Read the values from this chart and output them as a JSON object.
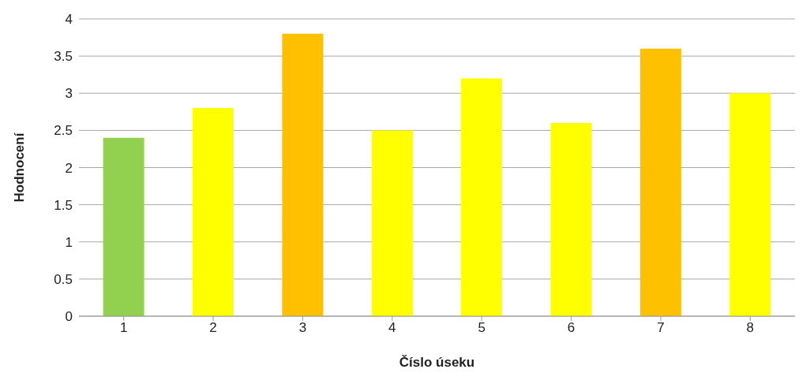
{
  "chart_data": {
    "type": "bar",
    "xlabel": "Číslo úseku",
    "ylabel": "Hodnocení",
    "categories": [
      "1",
      "2",
      "3",
      "4",
      "5",
      "6",
      "7",
      "8"
    ],
    "values": [
      2.4,
      2.8,
      3.8,
      2.5,
      3.2,
      2.6,
      3.6,
      3.0
    ],
    "colors": [
      "#92d050",
      "#ffff00",
      "#ffc000",
      "#ffff00",
      "#ffff00",
      "#ffff00",
      "#ffc000",
      "#ffff00"
    ],
    "ylim": [
      0,
      4
    ],
    "yticks": [
      0,
      0.5,
      1,
      1.5,
      2,
      2.5,
      3,
      3.5,
      4
    ],
    "grid": "y",
    "legend": false
  }
}
